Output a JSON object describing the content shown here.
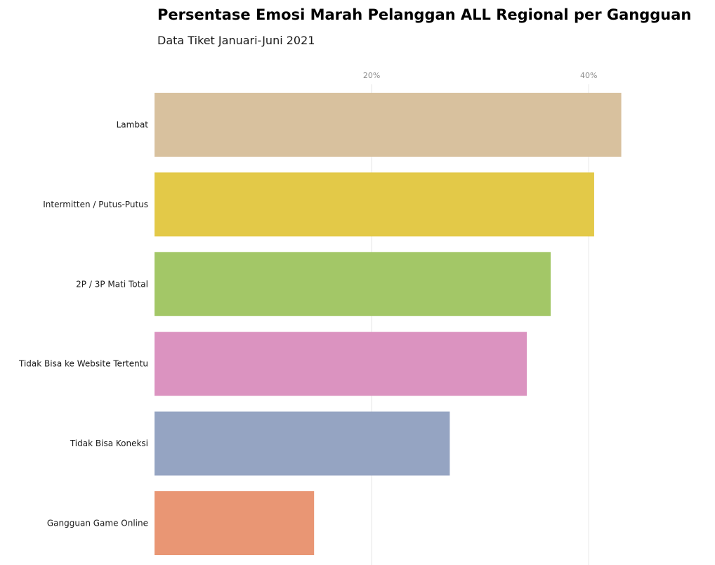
{
  "chart_data": {
    "type": "bar",
    "orientation": "horizontal",
    "title": "Persentase Emosi Marah Pelanggan ALL Regional per Gangguan",
    "subtitle": "Data Tiket Januari-Juni 2021",
    "xlabel": "",
    "ylabel": "",
    "xlim": [
      0,
      51
    ],
    "x_ticks": [
      20,
      40
    ],
    "x_tick_format": "{v}%",
    "x_axis_position": "top",
    "grid": "vertical",
    "legend": "none",
    "categories": [
      "Lambat",
      "Intermitten / Putus-Putus",
      "2P / 3P Mati Total",
      "Tidak Bisa ke Website Tertentu",
      "Tidak Bisa Koneksi",
      "Gangguan Game Online"
    ],
    "values": [
      43.0,
      40.5,
      36.5,
      34.3,
      27.2,
      14.7
    ],
    "colors": [
      "#d8c19e",
      "#e3c948",
      "#a3c767",
      "#db93c0",
      "#95a4c2",
      "#e99674"
    ]
  }
}
